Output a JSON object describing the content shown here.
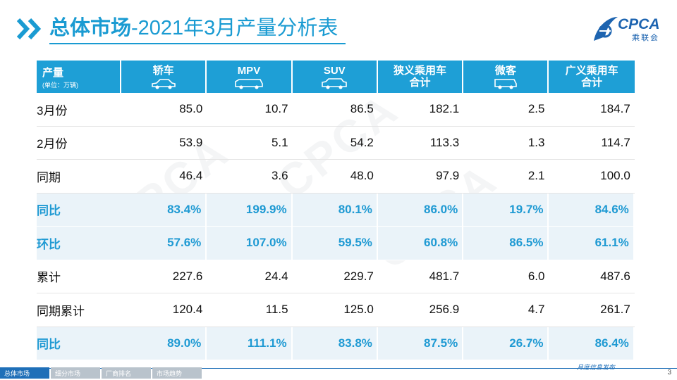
{
  "title": {
    "strong": "总体市场",
    "rest": "-2021年3月产量分析表"
  },
  "logo": {
    "text": "CPCA",
    "sub": "乘联会"
  },
  "table": {
    "corner_label": "产量",
    "corner_sub": "(单位：万辆)",
    "columns": [
      "轿车",
      "MPV",
      "SUV",
      "狭义乘用车\n合计",
      "微客",
      "广义乘用车\n合计"
    ],
    "rows": [
      {
        "label": "3月份",
        "values": [
          "85.0",
          "10.7",
          "86.5",
          "182.1",
          "2.5",
          "184.7"
        ],
        "pct": false
      },
      {
        "label": "2月份",
        "values": [
          "53.9",
          "5.1",
          "54.2",
          "113.3",
          "1.3",
          "114.7"
        ],
        "pct": false
      },
      {
        "label": "同期",
        "values": [
          "46.4",
          "3.6",
          "48.0",
          "97.9",
          "2.1",
          "100.0"
        ],
        "pct": false
      },
      {
        "label": "同比",
        "values": [
          "83.4%",
          "199.9%",
          "80.1%",
          "86.0%",
          "19.7%",
          "84.6%"
        ],
        "pct": true
      },
      {
        "label": "环比",
        "values": [
          "57.6%",
          "107.0%",
          "59.5%",
          "60.8%",
          "86.5%",
          "61.1%"
        ],
        "pct": true
      },
      {
        "label": "累计",
        "values": [
          "227.6",
          "24.4",
          "229.7",
          "481.7",
          "6.0",
          "487.6"
        ],
        "pct": false
      },
      {
        "label": "同期累计",
        "values": [
          "120.4",
          "11.5",
          "125.0",
          "256.9",
          "4.7",
          "261.7"
        ],
        "pct": false
      },
      {
        "label": "同比",
        "values": [
          "89.0%",
          "111.1%",
          "83.8%",
          "87.5%",
          "26.7%",
          "86.4%"
        ],
        "pct": true
      }
    ]
  },
  "watermark": "CPCA",
  "footer": {
    "tabs": [
      "总体市场",
      "细分市场",
      "厂商排名",
      "市场趋势"
    ],
    "tagline": "月度信息发布",
    "page": "3"
  },
  "colors": {
    "accent": "#1a9bd2",
    "header_bg": "#1e9fd6",
    "pct_row_bg": "#eaf3f9",
    "footer_blue": "#1f6fb8"
  }
}
